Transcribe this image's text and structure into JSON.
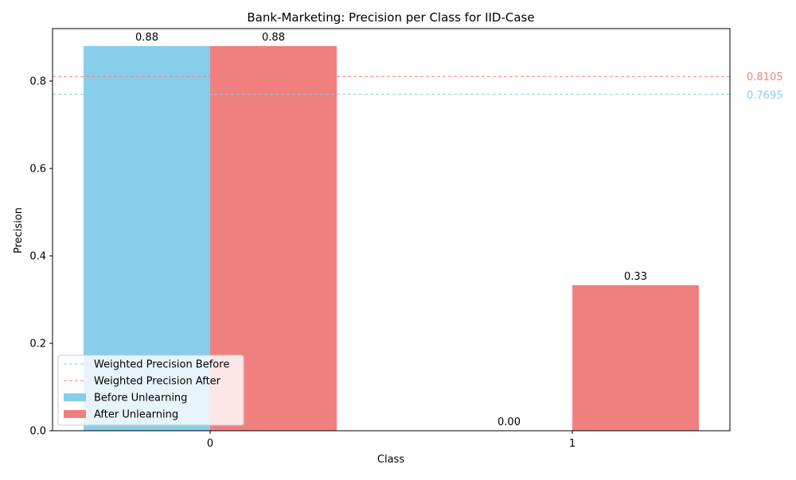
{
  "chart_data": {
    "type": "bar",
    "title": "Bank-Marketing: Precision per Class for IID-Case",
    "xlabel": "Class",
    "ylabel": "Precision",
    "categories": [
      "0",
      "1"
    ],
    "ylim": [
      0,
      0.92
    ],
    "yticks": [
      "0.0",
      "0.2",
      "0.4",
      "0.6",
      "0.8"
    ],
    "series": [
      {
        "name": "Before Unlearning",
        "values": [
          0.88,
          0.0
        ],
        "labels": [
          "0.88",
          "0.00"
        ],
        "color": "#87ceeb"
      },
      {
        "name": "After Unlearning",
        "values": [
          0.88,
          0.333
        ],
        "labels": [
          "0.88",
          "0.33"
        ],
        "color": "#f08080"
      }
    ],
    "reference_lines": [
      {
        "name": "Weighted Precision Before",
        "value": 0.7695,
        "label": "0.7695",
        "color": "#87ceeb"
      },
      {
        "name": "Weighted Precision After",
        "value": 0.8105,
        "label": "0.8105",
        "color": "#f08080"
      }
    ],
    "legend_position": "lower-left",
    "grid": false
  }
}
